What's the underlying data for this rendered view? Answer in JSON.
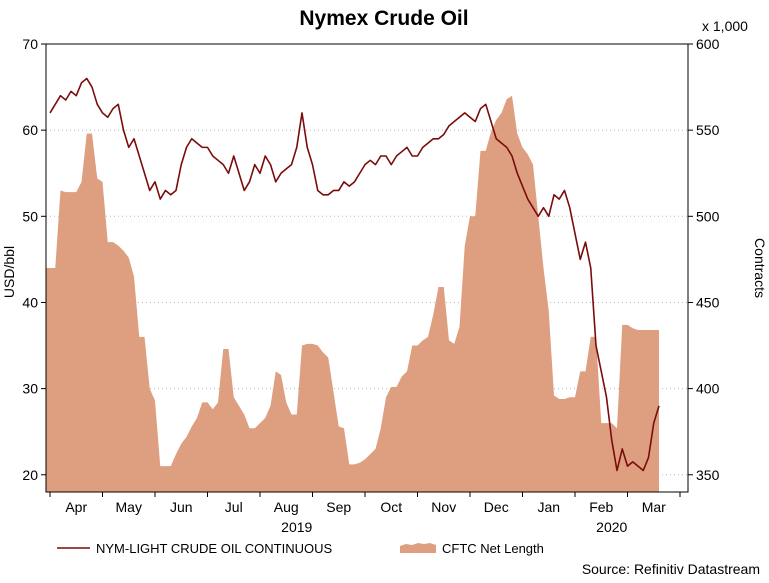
{
  "chart_data": {
    "type": "line+area",
    "title": "Nymex Crude Oil",
    "left_axis": {
      "label": "USD/bbl",
      "range": [
        18,
        70
      ],
      "ticks": [
        20,
        30,
        40,
        50,
        60,
        70
      ]
    },
    "right_axis": {
      "label": "Contracts",
      "unit_note": "x 1,000",
      "range": [
        340,
        600
      ],
      "ticks": [
        350,
        400,
        450,
        500,
        550,
        600
      ]
    },
    "x_axis": {
      "months": [
        "Apr",
        "May",
        "Jun",
        "Jul",
        "Aug",
        "Sep",
        "Oct",
        "Nov",
        "Dec",
        "Jan",
        "Feb",
        "Mar"
      ],
      "years": [
        "2019",
        "2020"
      ]
    },
    "grid": "dotted horizontal",
    "series": [
      {
        "name": "NYM-LIGHT CRUDE OIL CONTINUOUS",
        "axis": "left",
        "kind": "line",
        "color": "#7b0c0c",
        "points": [
          [
            0.0,
            62
          ],
          [
            0.1,
            63
          ],
          [
            0.2,
            64
          ],
          [
            0.3,
            63.5
          ],
          [
            0.4,
            64.5
          ],
          [
            0.5,
            64
          ],
          [
            0.6,
            65.5
          ],
          [
            0.7,
            66
          ],
          [
            0.8,
            65
          ],
          [
            0.9,
            63
          ],
          [
            1.0,
            62
          ],
          [
            1.1,
            61.5
          ],
          [
            1.2,
            62.5
          ],
          [
            1.3,
            63
          ],
          [
            1.4,
            60
          ],
          [
            1.5,
            58
          ],
          [
            1.6,
            59
          ],
          [
            1.7,
            57
          ],
          [
            1.8,
            55
          ],
          [
            1.9,
            53
          ],
          [
            2.0,
            54
          ],
          [
            2.1,
            52
          ],
          [
            2.2,
            53
          ],
          [
            2.3,
            52.5
          ],
          [
            2.4,
            53
          ],
          [
            2.5,
            56
          ],
          [
            2.6,
            58
          ],
          [
            2.7,
            59
          ],
          [
            2.8,
            58.5
          ],
          [
            2.9,
            58
          ],
          [
            3.0,
            58
          ],
          [
            3.1,
            57
          ],
          [
            3.2,
            56.5
          ],
          [
            3.3,
            56
          ],
          [
            3.4,
            55
          ],
          [
            3.5,
            57
          ],
          [
            3.6,
            55
          ],
          [
            3.7,
            53
          ],
          [
            3.8,
            54
          ],
          [
            3.9,
            56
          ],
          [
            4.0,
            55
          ],
          [
            4.1,
            57
          ],
          [
            4.2,
            56
          ],
          [
            4.3,
            54
          ],
          [
            4.4,
            55
          ],
          [
            4.5,
            55.5
          ],
          [
            4.6,
            56
          ],
          [
            4.7,
            58
          ],
          [
            4.8,
            62
          ],
          [
            4.9,
            58
          ],
          [
            5.0,
            56
          ],
          [
            5.1,
            53
          ],
          [
            5.2,
            52.5
          ],
          [
            5.3,
            52.5
          ],
          [
            5.4,
            53
          ],
          [
            5.5,
            53
          ],
          [
            5.6,
            54
          ],
          [
            5.7,
            53.5
          ],
          [
            5.8,
            54
          ],
          [
            5.9,
            55
          ],
          [
            6.0,
            56
          ],
          [
            6.1,
            56.5
          ],
          [
            6.2,
            56
          ],
          [
            6.3,
            57
          ],
          [
            6.4,
            57
          ],
          [
            6.5,
            56
          ],
          [
            6.6,
            57
          ],
          [
            6.7,
            57.5
          ],
          [
            6.8,
            58
          ],
          [
            6.9,
            57
          ],
          [
            7.0,
            57
          ],
          [
            7.1,
            58
          ],
          [
            7.2,
            58.5
          ],
          [
            7.3,
            59
          ],
          [
            7.4,
            59
          ],
          [
            7.5,
            59.5
          ],
          [
            7.6,
            60.5
          ],
          [
            7.7,
            61
          ],
          [
            7.8,
            61.5
          ],
          [
            7.9,
            62
          ],
          [
            8.0,
            61.5
          ],
          [
            8.1,
            61
          ],
          [
            8.2,
            62.5
          ],
          [
            8.3,
            63
          ],
          [
            8.4,
            61
          ],
          [
            8.5,
            59
          ],
          [
            8.6,
            58.5
          ],
          [
            8.7,
            58
          ],
          [
            8.8,
            57
          ],
          [
            8.9,
            55
          ],
          [
            9.0,
            53.5
          ],
          [
            9.1,
            52
          ],
          [
            9.2,
            51
          ],
          [
            9.3,
            50
          ],
          [
            9.4,
            51
          ],
          [
            9.5,
            50
          ],
          [
            9.6,
            52.5
          ],
          [
            9.7,
            52
          ],
          [
            9.8,
            53
          ],
          [
            9.9,
            51
          ],
          [
            10.0,
            48
          ],
          [
            10.1,
            45
          ],
          [
            10.2,
            47
          ],
          [
            10.3,
            44
          ],
          [
            10.4,
            35
          ],
          [
            10.5,
            32
          ],
          [
            10.6,
            29
          ],
          [
            10.7,
            24
          ],
          [
            10.8,
            20.5
          ],
          [
            10.9,
            23
          ],
          [
            11.0,
            21
          ],
          [
            11.1,
            21.5
          ],
          [
            11.2,
            21
          ],
          [
            11.3,
            20.5
          ],
          [
            11.4,
            22
          ],
          [
            11.5,
            26
          ],
          [
            11.6,
            28
          ]
        ]
      },
      {
        "name": "CFTC Net Length",
        "axis": "right",
        "kind": "area",
        "color": "#dd9f80",
        "points": [
          [
            0.0,
            470
          ],
          [
            0.1,
            470
          ],
          [
            0.2,
            515
          ],
          [
            0.3,
            514
          ],
          [
            0.4,
            514
          ],
          [
            0.5,
            514
          ],
          [
            0.6,
            520
          ],
          [
            0.7,
            548
          ],
          [
            0.8,
            548
          ],
          [
            0.9,
            522
          ],
          [
            1.0,
            520
          ],
          [
            1.1,
            485
          ],
          [
            1.2,
            485
          ],
          [
            1.3,
            483
          ],
          [
            1.4,
            480
          ],
          [
            1.5,
            476
          ],
          [
            1.6,
            465
          ],
          [
            1.7,
            430
          ],
          [
            1.8,
            430
          ],
          [
            1.9,
            400
          ],
          [
            2.0,
            393
          ],
          [
            2.1,
            355
          ],
          [
            2.2,
            355
          ],
          [
            2.3,
            355
          ],
          [
            2.4,
            362
          ],
          [
            2.5,
            368
          ],
          [
            2.6,
            372
          ],
          [
            2.7,
            378
          ],
          [
            2.8,
            383
          ],
          [
            2.9,
            392
          ],
          [
            3.0,
            392
          ],
          [
            3.1,
            388
          ],
          [
            3.2,
            392
          ],
          [
            3.3,
            423
          ],
          [
            3.4,
            423
          ],
          [
            3.5,
            395
          ],
          [
            3.6,
            390
          ],
          [
            3.7,
            385
          ],
          [
            3.8,
            377
          ],
          [
            3.9,
            377
          ],
          [
            4.0,
            380
          ],
          [
            4.1,
            383
          ],
          [
            4.2,
            390
          ],
          [
            4.3,
            410
          ],
          [
            4.4,
            408
          ],
          [
            4.5,
            392
          ],
          [
            4.6,
            385
          ],
          [
            4.7,
            385
          ],
          [
            4.8,
            425
          ],
          [
            4.9,
            426
          ],
          [
            5.0,
            426
          ],
          [
            5.1,
            425
          ],
          [
            5.2,
            421
          ],
          [
            5.3,
            418
          ],
          [
            5.4,
            398
          ],
          [
            5.5,
            378
          ],
          [
            5.6,
            377
          ],
          [
            5.7,
            356
          ],
          [
            5.8,
            356
          ],
          [
            5.9,
            357
          ],
          [
            6.0,
            359
          ],
          [
            6.1,
            362
          ],
          [
            6.2,
            365
          ],
          [
            6.3,
            377
          ],
          [
            6.4,
            395
          ],
          [
            6.5,
            401
          ],
          [
            6.6,
            401
          ],
          [
            6.7,
            407
          ],
          [
            6.8,
            410
          ],
          [
            6.9,
            425
          ],
          [
            7.0,
            425
          ],
          [
            7.1,
            428
          ],
          [
            7.2,
            430
          ],
          [
            7.3,
            443
          ],
          [
            7.4,
            459
          ],
          [
            7.5,
            459
          ],
          [
            7.6,
            428
          ],
          [
            7.7,
            426
          ],
          [
            7.8,
            436
          ],
          [
            7.9,
            483
          ],
          [
            8.0,
            500
          ],
          [
            8.1,
            500
          ],
          [
            8.2,
            538
          ],
          [
            8.3,
            538
          ],
          [
            8.4,
            549
          ],
          [
            8.5,
            556
          ],
          [
            8.6,
            560
          ],
          [
            8.7,
            568
          ],
          [
            8.8,
            570
          ],
          [
            8.9,
            548
          ],
          [
            9.0,
            540
          ],
          [
            9.1,
            536
          ],
          [
            9.2,
            530
          ],
          [
            9.3,
            500
          ],
          [
            9.4,
            470
          ],
          [
            9.5,
            445
          ],
          [
            9.6,
            396
          ],
          [
            9.7,
            394
          ],
          [
            9.8,
            394
          ],
          [
            9.9,
            395
          ],
          [
            10.0,
            395
          ],
          [
            10.1,
            410
          ],
          [
            10.2,
            410
          ],
          [
            10.3,
            430
          ],
          [
            10.4,
            430
          ],
          [
            10.5,
            380
          ],
          [
            10.6,
            380
          ],
          [
            10.7,
            380
          ],
          [
            10.8,
            377
          ],
          [
            10.9,
            437
          ],
          [
            11.0,
            437
          ],
          [
            11.1,
            435
          ],
          [
            11.2,
            434
          ],
          [
            11.3,
            434
          ],
          [
            11.4,
            434
          ],
          [
            11.5,
            434
          ],
          [
            11.6,
            434
          ]
        ]
      }
    ],
    "source": "Source: Refinitiv Datastream"
  }
}
